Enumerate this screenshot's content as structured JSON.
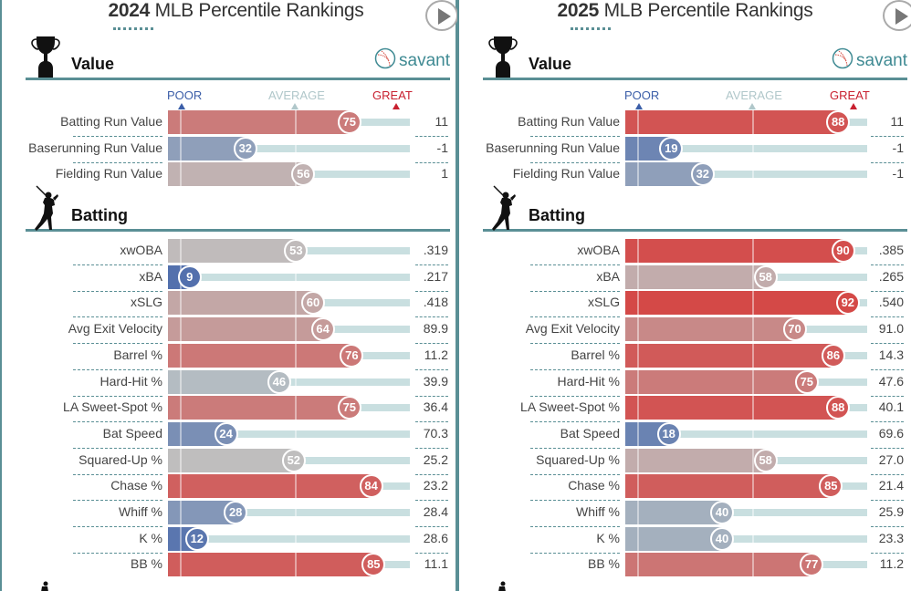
{
  "chart_data": [
    {
      "type": "bar",
      "title": "2024 MLB Percentile Rankings",
      "title_year": "2024",
      "title_rest": " MLB Percentile Rankings",
      "scale": {
        "poor": "POOR",
        "average": "AVERAGE",
        "great": "GREAT",
        "range": [
          0,
          100
        ]
      },
      "sections": [
        {
          "name": "Value",
          "icon": "trophy-icon",
          "show_brand": true,
          "rows": [
            {
              "label": "Batting Run Value",
              "percentile": 75,
              "value": "11"
            },
            {
              "label": "Baserunning Run Value",
              "percentile": 32,
              "value": "-1"
            },
            {
              "label": "Fielding Run Value",
              "percentile": 56,
              "value": "1"
            }
          ]
        },
        {
          "name": "Batting",
          "icon": "batter-icon",
          "show_brand": false,
          "rows": [
            {
              "label": "xwOBA",
              "percentile": 53,
              "value": ".319"
            },
            {
              "label": "xBA",
              "percentile": 9,
              "value": ".217"
            },
            {
              "label": "xSLG",
              "percentile": 60,
              "value": ".418"
            },
            {
              "label": "Avg Exit Velocity",
              "percentile": 64,
              "value": "89.9"
            },
            {
              "label": "Barrel %",
              "percentile": 76,
              "value": "11.2"
            },
            {
              "label": "Hard-Hit %",
              "percentile": 46,
              "value": "39.9"
            },
            {
              "label": "LA Sweet-Spot %",
              "percentile": 75,
              "value": "36.4"
            },
            {
              "label": "Bat Speed",
              "percentile": 24,
              "value": "70.3"
            },
            {
              "label": "Squared-Up %",
              "percentile": 52,
              "value": "25.2"
            },
            {
              "label": "Chase %",
              "percentile": 84,
              "value": "23.2"
            },
            {
              "label": "Whiff %",
              "percentile": 28,
              "value": "28.4"
            },
            {
              "label": "K %",
              "percentile": 12,
              "value": "28.6"
            },
            {
              "label": "BB %",
              "percentile": 85,
              "value": "11.1"
            }
          ]
        }
      ]
    },
    {
      "type": "bar",
      "title": "2025 MLB Percentile Rankings",
      "title_year": "2025",
      "title_rest": " MLB Percentile Rankings",
      "scale": {
        "poor": "POOR",
        "average": "AVERAGE",
        "great": "GREAT",
        "range": [
          0,
          100
        ]
      },
      "sections": [
        {
          "name": "Value",
          "icon": "trophy-icon",
          "show_brand": true,
          "rows": [
            {
              "label": "Batting Run Value",
              "percentile": 88,
              "value": "11"
            },
            {
              "label": "Baserunning Run Value",
              "percentile": 19,
              "value": "-1"
            },
            {
              "label": "Fielding Run Value",
              "percentile": 32,
              "value": "-1"
            }
          ]
        },
        {
          "name": "Batting",
          "icon": "batter-icon",
          "show_brand": false,
          "rows": [
            {
              "label": "xwOBA",
              "percentile": 90,
              "value": ".385"
            },
            {
              "label": "xBA",
              "percentile": 58,
              "value": ".265"
            },
            {
              "label": "xSLG",
              "percentile": 92,
              "value": ".540"
            },
            {
              "label": "Avg Exit Velocity",
              "percentile": 70,
              "value": "91.0"
            },
            {
              "label": "Barrel %",
              "percentile": 86,
              "value": "14.3"
            },
            {
              "label": "Hard-Hit %",
              "percentile": 75,
              "value": "47.6"
            },
            {
              "label": "LA Sweet-Spot %",
              "percentile": 88,
              "value": "40.1"
            },
            {
              "label": "Bat Speed",
              "percentile": 18,
              "value": "69.6"
            },
            {
              "label": "Squared-Up %",
              "percentile": 58,
              "value": "27.0"
            },
            {
              "label": "Chase %",
              "percentile": 85,
              "value": "21.4"
            },
            {
              "label": "Whiff %",
              "percentile": 40,
              "value": "25.9"
            },
            {
              "label": "K %",
              "percentile": 40,
              "value": "23.3"
            },
            {
              "label": "BB %",
              "percentile": 77,
              "value": "11.2"
            }
          ]
        }
      ]
    }
  ],
  "brand": {
    "label": "savant",
    "icon": "baseball-icon"
  },
  "colors": {
    "poor": "#3b5ea8",
    "poor_light": "#8fa8c8",
    "average": "#bdc3c3",
    "average_teal": "#b6cfd1",
    "great": "#d8312f",
    "great_light": "#d68a80",
    "scale_poor": "#3b5ea8",
    "scale_average": "#b0c7ca",
    "scale_great": "#c8202f",
    "accent": "#5a8f95",
    "track": "#c9dfe0"
  }
}
